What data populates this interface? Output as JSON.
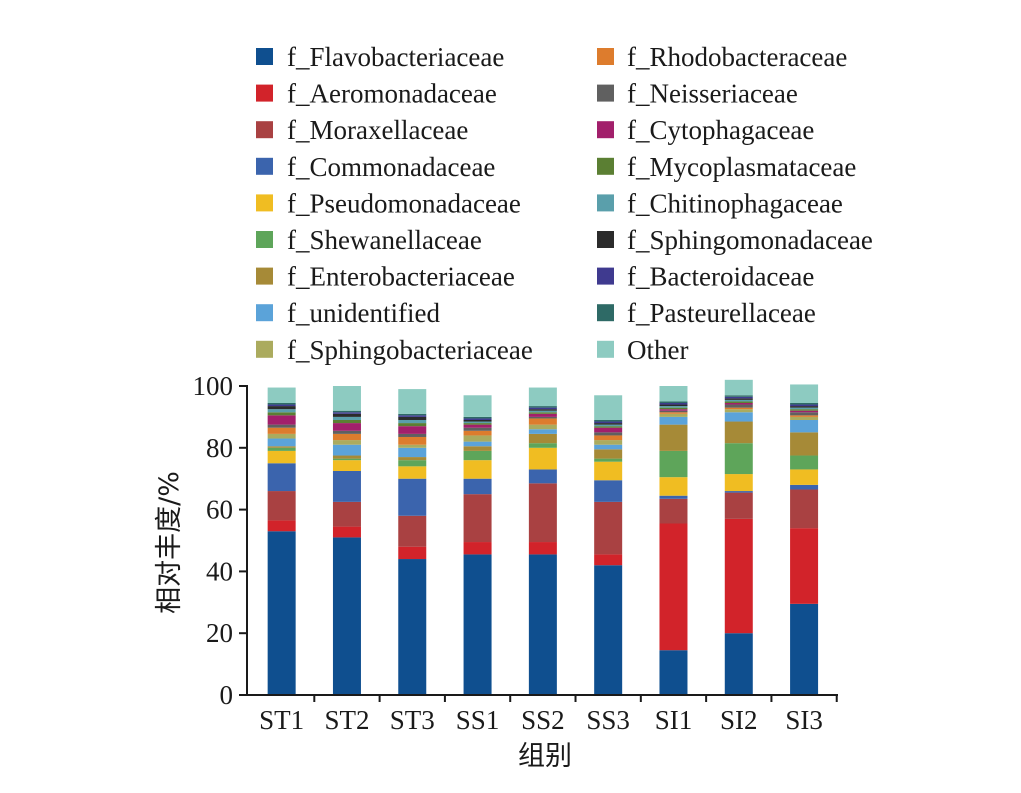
{
  "chart_data": {
    "type": "bar",
    "stacked": true,
    "title": "",
    "xlabel": "组别",
    "ylabel": "相对丰度/%",
    "ylim": [
      0,
      100
    ],
    "yticks": [
      0,
      20,
      40,
      60,
      80,
      100
    ],
    "legend_position": "top",
    "categories": [
      "ST1",
      "ST2",
      "ST3",
      "SS1",
      "SS2",
      "SS3",
      "SI1",
      "SI2",
      "SI3"
    ],
    "series": [
      {
        "name": "f_Flavobacteriaceae",
        "color": "#0f4f8f",
        "values": [
          53,
          51,
          44,
          45.5,
          45.5,
          42,
          14.5,
          20,
          29.5
        ]
      },
      {
        "name": "f_Aeromonadaceae",
        "color": "#d2232a",
        "values": [
          3.5,
          3.5,
          4,
          4,
          4,
          3.5,
          41,
          37,
          24.5
        ]
      },
      {
        "name": "f_Moraxellaceae",
        "color": "#a94142",
        "values": [
          9.5,
          8,
          10,
          15.5,
          19,
          17,
          8,
          8.5,
          12.5
        ]
      },
      {
        "name": "f_Commonadaceae",
        "color": "#3b64ad",
        "values": [
          9,
          10,
          12,
          5,
          4.5,
          7,
          1,
          0.5,
          1.5
        ]
      },
      {
        "name": "f_Pseudomonadaceae",
        "color": "#f0bd22",
        "values": [
          4,
          3.5,
          4,
          6,
          7,
          6,
          6,
          5.5,
          5
        ]
      },
      {
        "name": "f_Shewanellaceae",
        "color": "#5ea55a",
        "values": [
          1,
          0.5,
          2,
          3,
          1.5,
          1,
          8.5,
          10,
          4.5
        ]
      },
      {
        "name": "f_Enterobacteriaceae",
        "color": "#a68a37",
        "values": [
          0.5,
          1,
          1,
          1.5,
          3,
          3,
          8.5,
          7,
          7.5
        ]
      },
      {
        "name": "f_unidentified",
        "color": "#5ba3d9",
        "values": [
          2.5,
          3.5,
          3,
          1.5,
          1.5,
          1.5,
          2.5,
          3,
          4
        ]
      },
      {
        "name": "f_Sphingobacteriaceae",
        "color": "#abab5e",
        "values": [
          1.5,
          1.5,
          1,
          2,
          1.5,
          1.5,
          1,
          1,
          1
        ]
      },
      {
        "name": "f_Rhodobacteraceae",
        "color": "#dd7c2d",
        "values": [
          2,
          2,
          2.5,
          1.5,
          2,
          1.5,
          0.5,
          0.5,
          0.5
        ]
      },
      {
        "name": "f_Neisseriaceae",
        "color": "#606060",
        "values": [
          1,
          1,
          1,
          1,
          0.5,
          1,
          0.5,
          1,
          1
        ]
      },
      {
        "name": "f_Cytophagaceae",
        "color": "#a21f6b",
        "values": [
          3,
          2.5,
          2.5,
          1,
          1,
          1.5,
          0.5,
          0.5,
          0.5
        ]
      },
      {
        "name": "f_Mycoplasmataceae",
        "color": "#5b7f33",
        "values": [
          1,
          1,
          1,
          0.5,
          0.5,
          0.5,
          0.5,
          0.5,
          0.5
        ]
      },
      {
        "name": "f_Chitinophagaceae",
        "color": "#5a9fab",
        "values": [
          1,
          1,
          1,
          0.5,
          0.5,
          0.5,
          0.5,
          0.5,
          0.5
        ]
      },
      {
        "name": "f_Sphingomonadaceae",
        "color": "#2b2b2b",
        "values": [
          1,
          1,
          1,
          0.5,
          0.5,
          0.5,
          0.5,
          0.5,
          0.5
        ]
      },
      {
        "name": "f_Bacteroidaceae",
        "color": "#3f3a8f",
        "values": [
          0.5,
          0.5,
          0.5,
          0.5,
          0.5,
          0.5,
          0.5,
          0.5,
          0.5
        ]
      },
      {
        "name": "f_Pasteurellaceae",
        "color": "#2e6a66",
        "values": [
          0.5,
          0.5,
          0.5,
          0.5,
          0.5,
          0.5,
          0.5,
          0.5,
          0.5
        ]
      },
      {
        "name": "Other",
        "color": "#8dcbc1",
        "values": [
          5,
          8,
          8,
          7,
          6,
          8,
          5,
          5,
          6
        ]
      }
    ]
  }
}
